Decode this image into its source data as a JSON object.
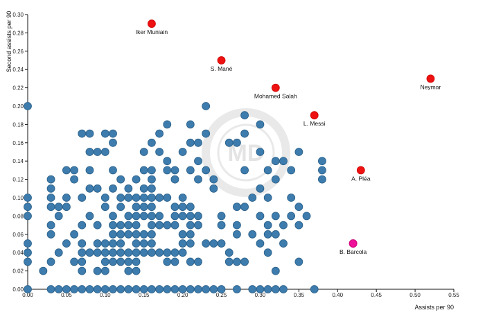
{
  "chart_data": {
    "type": "scatter",
    "xlabel": "Assists per 90",
    "ylabel": "Second assists per 90",
    "xlim": [
      0,
      0.55
    ],
    "ylim": [
      0,
      0.3
    ],
    "x_ticks": [
      "0.00",
      "0.05",
      "0.10",
      "0.15",
      "0.20",
      "0.25",
      "0.30",
      "0.35",
      "0.40",
      "0.45",
      "0.50",
      "0.55"
    ],
    "y_ticks": [
      "0.00",
      "0.02",
      "0.04",
      "0.06",
      "0.08",
      "0.10",
      "0.12",
      "0.14",
      "0.16",
      "0.18",
      "0.20",
      "0.22",
      "0.24",
      "0.26",
      "0.28",
      "0.30"
    ],
    "colors": {
      "default": "#3d7cad",
      "highlight": "#ee1111",
      "special": "#ee1199"
    },
    "highlighted": [
      {
        "name": "Iker Muniain",
        "x": 0.16,
        "y": 0.29
      },
      {
        "name": "S. Mané",
        "x": 0.25,
        "y": 0.25
      },
      {
        "name": "Mohamed Salah",
        "x": 0.32,
        "y": 0.22
      },
      {
        "name": "Neymar",
        "x": 0.52,
        "y": 0.23
      },
      {
        "name": "L. Messi",
        "x": 0.37,
        "y": 0.19
      },
      {
        "name": "A. Pléa",
        "x": 0.43,
        "y": 0.13
      },
      {
        "name": "B. Barcola",
        "x": 0.42,
        "y": 0.05,
        "special": true
      }
    ],
    "points": [
      [
        0,
        0
      ],
      [
        0,
        0.03
      ],
      [
        0,
        0.04
      ],
      [
        0,
        0.05
      ],
      [
        0,
        0.08
      ],
      [
        0,
        0.09
      ],
      [
        0,
        0.1
      ],
      [
        0,
        0.2
      ],
      [
        0.02,
        0.02
      ],
      [
        0.03,
        0
      ],
      [
        0.03,
        0.03
      ],
      [
        0.03,
        0.06
      ],
      [
        0.03,
        0.07
      ],
      [
        0.03,
        0.09
      ],
      [
        0.03,
        0.1
      ],
      [
        0.03,
        0.11
      ],
      [
        0.03,
        0.12
      ],
      [
        0.04,
        0
      ],
      [
        0.04,
        0.04
      ],
      [
        0.04,
        0.08
      ],
      [
        0.04,
        0.09
      ],
      [
        0.05,
        0
      ],
      [
        0.05,
        0.05
      ],
      [
        0.05,
        0.09
      ],
      [
        0.05,
        0.1
      ],
      [
        0.05,
        0.13
      ],
      [
        0.06,
        0
      ],
      [
        0.06,
        0.03
      ],
      [
        0.06,
        0.06
      ],
      [
        0.06,
        0.12
      ],
      [
        0.06,
        0.13
      ],
      [
        0.07,
        0
      ],
      [
        0.07,
        0.02
      ],
      [
        0.07,
        0.03
      ],
      [
        0.07,
        0.04
      ],
      [
        0.07,
        0.05
      ],
      [
        0.07,
        0.07
      ],
      [
        0.07,
        0.1
      ],
      [
        0.07,
        0.17
      ],
      [
        0.08,
        0
      ],
      [
        0.08,
        0.04
      ],
      [
        0.08,
        0.08
      ],
      [
        0.08,
        0.11
      ],
      [
        0.08,
        0.13
      ],
      [
        0.08,
        0.15
      ],
      [
        0.08,
        0.17
      ],
      [
        0.09,
        0
      ],
      [
        0.09,
        0.02
      ],
      [
        0.09,
        0.04
      ],
      [
        0.09,
        0.05
      ],
      [
        0.09,
        0.07
      ],
      [
        0.09,
        0.11
      ],
      [
        0.09,
        0.15
      ],
      [
        0.1,
        0
      ],
      [
        0.1,
        0.02
      ],
      [
        0.1,
        0.03
      ],
      [
        0.1,
        0.04
      ],
      [
        0.1,
        0.05
      ],
      [
        0.1,
        0.09
      ],
      [
        0.1,
        0.1
      ],
      [
        0.1,
        0.15
      ],
      [
        0.1,
        0.17
      ],
      [
        0.11,
        0
      ],
      [
        0.11,
        0.03
      ],
      [
        0.11,
        0.04
      ],
      [
        0.11,
        0.05
      ],
      [
        0.11,
        0.06
      ],
      [
        0.11,
        0.07
      ],
      [
        0.11,
        0.08
      ],
      [
        0.11,
        0.11
      ],
      [
        0.11,
        0.13
      ],
      [
        0.11,
        0.16
      ],
      [
        0.11,
        0.17
      ],
      [
        0.12,
        0
      ],
      [
        0.12,
        0.03
      ],
      [
        0.12,
        0.04
      ],
      [
        0.12,
        0.05
      ],
      [
        0.12,
        0.06
      ],
      [
        0.12,
        0.07
      ],
      [
        0.12,
        0.09
      ],
      [
        0.12,
        0.1
      ],
      [
        0.12,
        0.12
      ],
      [
        0.13,
        0
      ],
      [
        0.13,
        0.02
      ],
      [
        0.13,
        0.03
      ],
      [
        0.13,
        0.04
      ],
      [
        0.13,
        0.06
      ],
      [
        0.13,
        0.07
      ],
      [
        0.13,
        0.08
      ],
      [
        0.13,
        0.1
      ],
      [
        0.13,
        0.11
      ],
      [
        0.14,
        0
      ],
      [
        0.14,
        0.02
      ],
      [
        0.14,
        0.03
      ],
      [
        0.14,
        0.04
      ],
      [
        0.14,
        0.05
      ],
      [
        0.14,
        0.06
      ],
      [
        0.14,
        0.07
      ],
      [
        0.14,
        0.08
      ],
      [
        0.14,
        0.09
      ],
      [
        0.14,
        0.1
      ],
      [
        0.14,
        0.12
      ],
      [
        0.15,
        0
      ],
      [
        0.15,
        0.04
      ],
      [
        0.15,
        0.05
      ],
      [
        0.15,
        0.06
      ],
      [
        0.15,
        0.08
      ],
      [
        0.15,
        0.09
      ],
      [
        0.15,
        0.1
      ],
      [
        0.15,
        0.11
      ],
      [
        0.15,
        0.13
      ],
      [
        0.15,
        0.15
      ],
      [
        0.16,
        0
      ],
      [
        0.16,
        0.04
      ],
      [
        0.16,
        0.05
      ],
      [
        0.16,
        0.06
      ],
      [
        0.16,
        0.07
      ],
      [
        0.16,
        0.08
      ],
      [
        0.16,
        0.09
      ],
      [
        0.16,
        0.1
      ],
      [
        0.16,
        0.11
      ],
      [
        0.16,
        0.12
      ],
      [
        0.16,
        0.13
      ],
      [
        0.16,
        0.16
      ],
      [
        0.17,
        0
      ],
      [
        0.17,
        0.04
      ],
      [
        0.17,
        0.07
      ],
      [
        0.17,
        0.08
      ],
      [
        0.17,
        0.1
      ],
      [
        0.17,
        0.15
      ],
      [
        0.17,
        0.17
      ],
      [
        0.18,
        0
      ],
      [
        0.18,
        0.03
      ],
      [
        0.18,
        0.04
      ],
      [
        0.18,
        0.07
      ],
      [
        0.18,
        0.1
      ],
      [
        0.18,
        0.13
      ],
      [
        0.18,
        0.14
      ],
      [
        0.18,
        0.18
      ],
      [
        0.19,
        0
      ],
      [
        0.19,
        0.03
      ],
      [
        0.19,
        0.04
      ],
      [
        0.19,
        0.07
      ],
      [
        0.19,
        0.08
      ],
      [
        0.19,
        0.09
      ],
      [
        0.19,
        0.12
      ],
      [
        0.19,
        0.13
      ],
      [
        0.2,
        0
      ],
      [
        0.2,
        0.04
      ],
      [
        0.2,
        0.05
      ],
      [
        0.2,
        0.06
      ],
      [
        0.2,
        0.08
      ],
      [
        0.2,
        0.09
      ],
      [
        0.2,
        0.1
      ],
      [
        0.2,
        0.15
      ],
      [
        0.21,
        0
      ],
      [
        0.21,
        0.03
      ],
      [
        0.21,
        0.05
      ],
      [
        0.21,
        0.06
      ],
      [
        0.21,
        0.07
      ],
      [
        0.21,
        0.08
      ],
      [
        0.21,
        0.09
      ],
      [
        0.21,
        0.13
      ],
      [
        0.21,
        0.16
      ],
      [
        0.21,
        0.18
      ],
      [
        0.22,
        0
      ],
      [
        0.22,
        0.03
      ],
      [
        0.22,
        0.07
      ],
      [
        0.22,
        0.08
      ],
      [
        0.22,
        0.12
      ],
      [
        0.22,
        0.14
      ],
      [
        0.22,
        0.16
      ],
      [
        0.23,
        0
      ],
      [
        0.23,
        0.05
      ],
      [
        0.23,
        0.13
      ],
      [
        0.23,
        0.17
      ],
      [
        0.23,
        0.2
      ],
      [
        0.24,
        0
      ],
      [
        0.24,
        0.05
      ],
      [
        0.24,
        0.11
      ],
      [
        0.24,
        0.12
      ],
      [
        0.25,
        0
      ],
      [
        0.25,
        0.05
      ],
      [
        0.25,
        0.07
      ],
      [
        0.25,
        0.08
      ],
      [
        0.26,
        0.03
      ],
      [
        0.26,
        0.04
      ],
      [
        0.26,
        0.16
      ],
      [
        0.27,
        0
      ],
      [
        0.27,
        0.03
      ],
      [
        0.27,
        0.06
      ],
      [
        0.27,
        0.07
      ],
      [
        0.27,
        0.09
      ],
      [
        0.27,
        0.16
      ],
      [
        0.28,
        0.03
      ],
      [
        0.28,
        0.09
      ],
      [
        0.28,
        0.13
      ],
      [
        0.28,
        0.17
      ],
      [
        0.28,
        0.19
      ],
      [
        0.29,
        0
      ],
      [
        0.29,
        0.06
      ],
      [
        0.29,
        0.1
      ],
      [
        0.3,
        0
      ],
      [
        0.3,
        0.05
      ],
      [
        0.3,
        0.08
      ],
      [
        0.3,
        0.11
      ],
      [
        0.3,
        0.15
      ],
      [
        0.3,
        0.18
      ],
      [
        0.31,
        0
      ],
      [
        0.31,
        0.04
      ],
      [
        0.31,
        0.06
      ],
      [
        0.31,
        0.07
      ],
      [
        0.31,
        0.1
      ],
      [
        0.31,
        0.13
      ],
      [
        0.32,
        0
      ],
      [
        0.32,
        0.02
      ],
      [
        0.32,
        0.06
      ],
      [
        0.32,
        0.08
      ],
      [
        0.32,
        0.12
      ],
      [
        0.32,
        0.14
      ],
      [
        0.33,
        0
      ],
      [
        0.33,
        0.05
      ],
      [
        0.33,
        0.07
      ],
      [
        0.33,
        0.14
      ],
      [
        0.34,
        0.08
      ],
      [
        0.34,
        0.1
      ],
      [
        0.34,
        0.13
      ],
      [
        0.35,
        0.03
      ],
      [
        0.35,
        0.07
      ],
      [
        0.35,
        0.09
      ],
      [
        0.35,
        0.15
      ],
      [
        0.36,
        0.08
      ],
      [
        0.37,
        0
      ],
      [
        0.38,
        0.12
      ],
      [
        0.38,
        0.13
      ],
      [
        0.38,
        0.14
      ]
    ]
  }
}
